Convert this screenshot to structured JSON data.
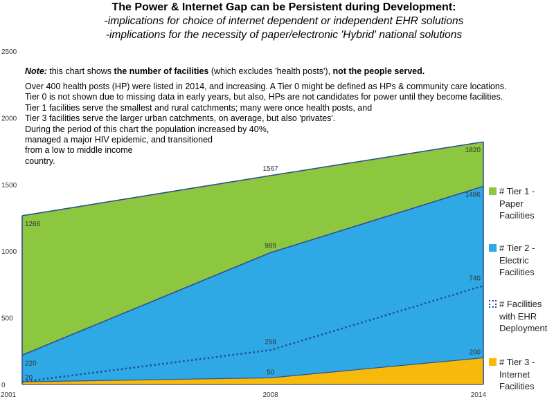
{
  "title": "The Power & Internet Gap can be Persistent during Development:",
  "subtitles": [
    "-implications for choice of internet dependent or independent EHR solutions",
    "-implications for the necessity of paper/electronic 'Hybrid' national solutions"
  ],
  "note": {
    "label": "Note:",
    "part1": " this chart shows ",
    "bold1": "the number of facilities",
    "part2": " (which excludes 'health posts'), ",
    "bold2": "not the people served."
  },
  "notes_lines": [
    "Over 400 health posts (HP) were listed in 2014, and increasing.  A Tier 0 might be defined as HPs & community care locations.",
    "Tier 0 is not shown due to missing data in early years, but also, HPs are not candidates for power until they become facilities.",
    "Tier 1 facilities serve the smallest and rural catchments;  many were once health posts, and",
    "Tier 3 facilities serve the larger urban catchments, on average, but also 'privates'.",
    "During the period of this chart the population increased by 40%,",
    "managed a major HIV epidemic, and transitioned",
    "from a low to middle income",
    "country."
  ],
  "colors": {
    "tier1": "#8DC63F",
    "tier2": "#2EA9E6",
    "tier3": "#F7BA0B",
    "ehr": "#1F4E9A",
    "outline": "#2F4E8F"
  },
  "chart_data": {
    "type": "area",
    "x": [
      2001,
      2008,
      2014
    ],
    "categories": [
      "2001",
      "2008",
      "2014"
    ],
    "ylim": [
      0,
      2500
    ],
    "yticks": [
      0,
      500,
      1000,
      1500,
      2000,
      2500
    ],
    "series": [
      {
        "name": "# Tier 1 - Paper Facilities",
        "values": [
          1266,
          1567,
          1820
        ],
        "style": "area"
      },
      {
        "name": "# Tier 2 - Electric Facilities",
        "values": [
          220,
          989,
          1486
        ],
        "style": "area"
      },
      {
        "name": "#  Facilities with EHR Deployment",
        "values": [
          20,
          258,
          740
        ],
        "style": "dotted-line"
      },
      {
        "name": "# Tier 3 - Internet Facilities",
        "values": [
          20,
          50,
          200
        ],
        "style": "area"
      }
    ],
    "data_labels": [
      [
        "1266",
        "1567",
        "1820"
      ],
      [
        "220",
        "989",
        "1486"
      ],
      [
        "",
        "258",
        "740"
      ],
      [
        "20",
        "50",
        "200"
      ]
    ],
    "legend_position": "right"
  }
}
